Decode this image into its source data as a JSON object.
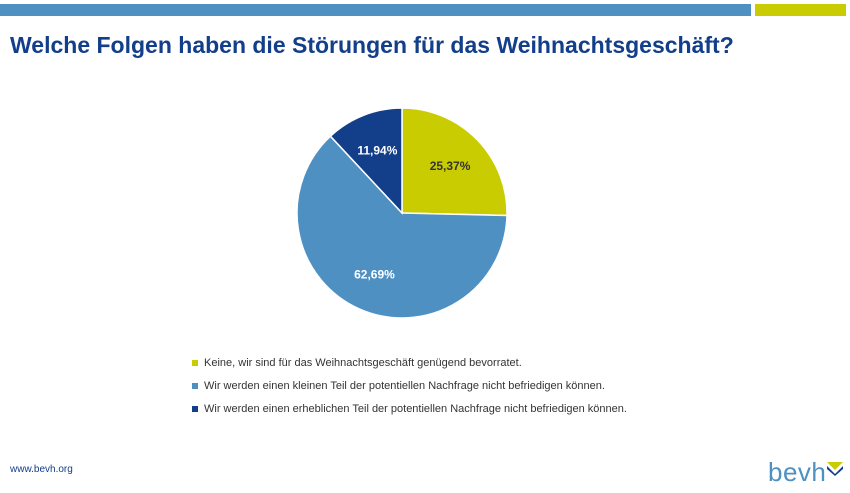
{
  "title": "Welche Folgen haben die Störungen für das Weihnachtsgeschäft?",
  "website": "www.bevh.org",
  "logo_text": "bevh",
  "chart_data": {
    "type": "pie",
    "slices": [
      {
        "label": "Keine, wir sind für das Weihnachtsgeschäft genügend bevorratet.",
        "value": 25.37,
        "display": "25,37%",
        "color": "#c9cc00",
        "label_color": "#333333"
      },
      {
        "label": "Wir werden einen kleinen Teil der potentiellen Nachfrage nicht befriedigen können.",
        "value": 62.69,
        "display": "62,69%",
        "color": "#4e90c2",
        "label_color": "#ffffff"
      },
      {
        "label": "Wir werden einen erheblichen Teil der potentiellen Nachfrage nicht befriedigen können.",
        "value": 11.94,
        "display": "11,94%",
        "color": "#123e8a",
        "label_color": "#ffffff"
      }
    ],
    "legend_position": "bottom"
  }
}
